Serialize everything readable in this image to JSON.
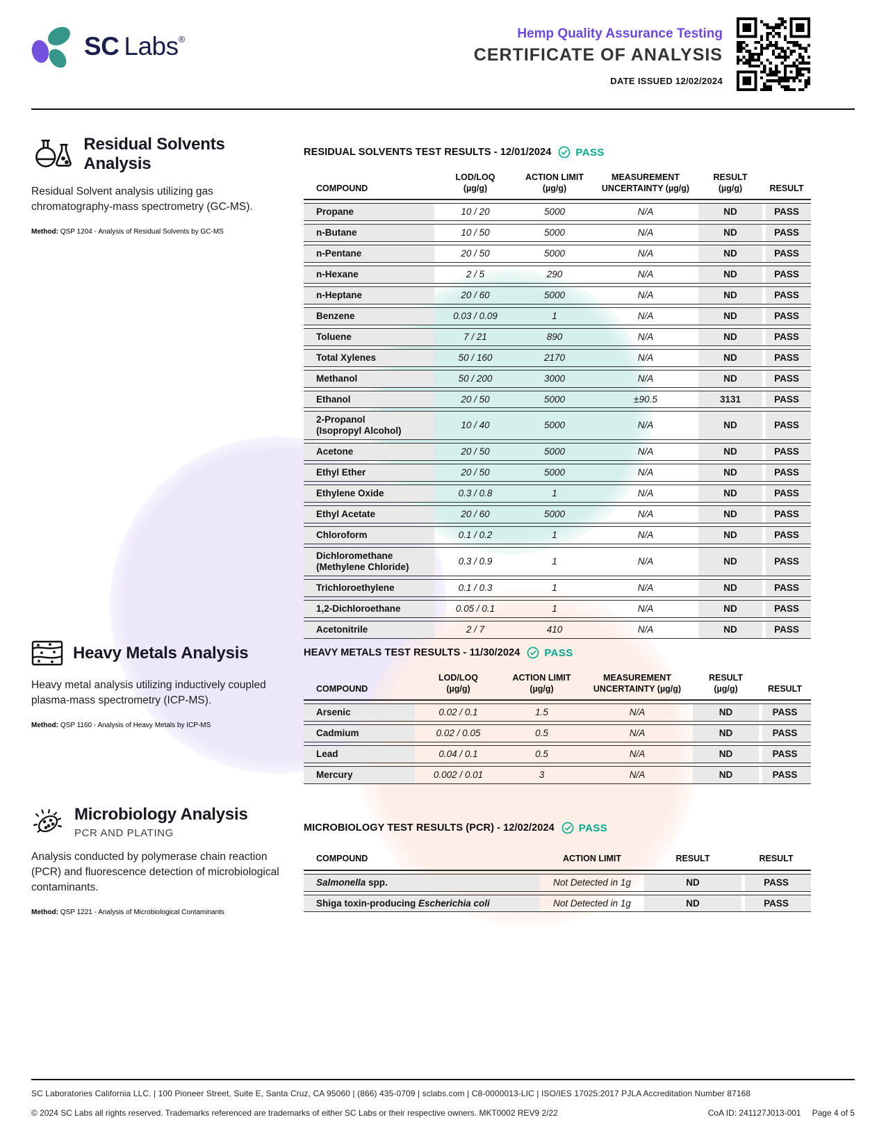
{
  "header": {
    "logo_sc": "SC",
    "logo_labs": "Labs",
    "logo_reg": "®",
    "program": "Hemp Quality Assurance Testing",
    "title": "CERTIFICATE OF ANALYSIS",
    "date_issued": "DATE ISSUED 12/02/2024"
  },
  "colors": {
    "accent_purple": "#6C47E0",
    "accent_teal": "#00A98C",
    "navy": "#1b1f4e"
  },
  "sections": {
    "solvents": {
      "heading": "Residual Solvents Analysis",
      "description": "Residual Solvent analysis utilizing gas chromatography-mass spectrometry (GC-MS).",
      "method_label": "Method:",
      "method": "QSP 1204 - Analysis of Residual Solvents by GC-MS",
      "results_title": "RESIDUAL SOLVENTS TEST RESULTS - 12/01/2024",
      "status": "PASS",
      "table": {
        "headers": [
          "COMPOUND",
          "LOD/LOQ\n(µg/g)",
          "ACTION LIMIT\n(µg/g)",
          "MEASUREMENT\nUNCERTAINTY (µg/g)",
          "RESULT\n(µg/g)",
          "RESULT"
        ],
        "rows": [
          {
            "compound": "Propane",
            "lod_loq": "10 / 20",
            "action_limit": "5000",
            "uncertainty": "N/A",
            "result": "ND",
            "status": "PASS"
          },
          {
            "compound": "n-Butane",
            "lod_loq": "10 / 50",
            "action_limit": "5000",
            "uncertainty": "N/A",
            "result": "ND",
            "status": "PASS"
          },
          {
            "compound": "n-Pentane",
            "lod_loq": "20 / 50",
            "action_limit": "5000",
            "uncertainty": "N/A",
            "result": "ND",
            "status": "PASS"
          },
          {
            "compound": "n-Hexane",
            "lod_loq": "2 / 5",
            "action_limit": "290",
            "uncertainty": "N/A",
            "result": "ND",
            "status": "PASS"
          },
          {
            "compound": "n-Heptane",
            "lod_loq": "20 / 60",
            "action_limit": "5000",
            "uncertainty": "N/A",
            "result": "ND",
            "status": "PASS"
          },
          {
            "compound": "Benzene",
            "lod_loq": "0.03 / 0.09",
            "action_limit": "1",
            "uncertainty": "N/A",
            "result": "ND",
            "status": "PASS"
          },
          {
            "compound": "Toluene",
            "lod_loq": "7 / 21",
            "action_limit": "890",
            "uncertainty": "N/A",
            "result": "ND",
            "status": "PASS"
          },
          {
            "compound": "Total Xylenes",
            "lod_loq": "50 / 160",
            "action_limit": "2170",
            "uncertainty": "N/A",
            "result": "ND",
            "status": "PASS"
          },
          {
            "compound": "Methanol",
            "lod_loq": "50 / 200",
            "action_limit": "3000",
            "uncertainty": "N/A",
            "result": "ND",
            "status": "PASS"
          },
          {
            "compound": "Ethanol",
            "lod_loq": "20 / 50",
            "action_limit": "5000",
            "uncertainty": "±90.5",
            "result": "3131",
            "status": "PASS"
          },
          {
            "compound": "2-Propanol\n(Isopropyl Alcohol)",
            "lod_loq": "10 / 40",
            "action_limit": "5000",
            "uncertainty": "N/A",
            "result": "ND",
            "status": "PASS"
          },
          {
            "compound": "Acetone",
            "lod_loq": "20 / 50",
            "action_limit": "5000",
            "uncertainty": "N/A",
            "result": "ND",
            "status": "PASS"
          },
          {
            "compound": "Ethyl Ether",
            "lod_loq": "20 / 50",
            "action_limit": "5000",
            "uncertainty": "N/A",
            "result": "ND",
            "status": "PASS"
          },
          {
            "compound": "Ethylene Oxide",
            "lod_loq": "0.3 / 0.8",
            "action_limit": "1",
            "uncertainty": "N/A",
            "result": "ND",
            "status": "PASS"
          },
          {
            "compound": "Ethyl Acetate",
            "lod_loq": "20 / 60",
            "action_limit": "5000",
            "uncertainty": "N/A",
            "result": "ND",
            "status": "PASS"
          },
          {
            "compound": "Chloroform",
            "lod_loq": "0.1 / 0.2",
            "action_limit": "1",
            "uncertainty": "N/A",
            "result": "ND",
            "status": "PASS"
          },
          {
            "compound": "Dichloromethane\n(Methylene Chloride)",
            "lod_loq": "0.3 / 0.9",
            "action_limit": "1",
            "uncertainty": "N/A",
            "result": "ND",
            "status": "PASS"
          },
          {
            "compound": "Trichloroethylene",
            "lod_loq": "0.1 / 0.3",
            "action_limit": "1",
            "uncertainty": "N/A",
            "result": "ND",
            "status": "PASS"
          },
          {
            "compound": "1,2-Dichloroethane",
            "lod_loq": "0.05 / 0.1",
            "action_limit": "1",
            "uncertainty": "N/A",
            "result": "ND",
            "status": "PASS"
          },
          {
            "compound": "Acetonitrile",
            "lod_loq": "2 / 7",
            "action_limit": "410",
            "uncertainty": "N/A",
            "result": "ND",
            "status": "PASS"
          }
        ]
      }
    },
    "metals": {
      "heading": "Heavy Metals Analysis",
      "description": "Heavy metal analysis utilizing inductively coupled plasma-mass spectrometry (ICP-MS).",
      "method_label": "Method:",
      "method": "QSP 1160 - Analysis of Heavy Metals by ICP-MS",
      "results_title": "HEAVY METALS TEST RESULTS - 11/30/2024",
      "status": "PASS",
      "table": {
        "headers": [
          "COMPOUND",
          "LOD/LOQ\n(µg/g)",
          "ACTION LIMIT\n(µg/g)",
          "MEASUREMENT\nUNCERTAINTY (µg/g)",
          "RESULT\n(µg/g)",
          "RESULT"
        ],
        "rows": [
          {
            "compound": "Arsenic",
            "lod_loq": "0.02 / 0.1",
            "action_limit": "1.5",
            "uncertainty": "N/A",
            "result": "ND",
            "status": "PASS"
          },
          {
            "compound": "Cadmium",
            "lod_loq": "0.02 / 0.05",
            "action_limit": "0.5",
            "uncertainty": "N/A",
            "result": "ND",
            "status": "PASS"
          },
          {
            "compound": "Lead",
            "lod_loq": "0.04 / 0.1",
            "action_limit": "0.5",
            "uncertainty": "N/A",
            "result": "ND",
            "status": "PASS"
          },
          {
            "compound": "Mercury",
            "lod_loq": "0.002 / 0.01",
            "action_limit": "3",
            "uncertainty": "N/A",
            "result": "ND",
            "status": "PASS"
          }
        ]
      }
    },
    "micro": {
      "heading": "Microbiology Analysis",
      "subheading": "PCR AND PLATING",
      "description": "Analysis conducted by polymerase chain reaction (PCR) and fluorescence detection of microbiological contaminants.",
      "method_label": "Method:",
      "method": "QSP 1221 - Analysis of Microbiological Contaminants",
      "results_title": "MICROBIOLOGY TEST RESULTS (PCR) - 12/02/2024",
      "status": "PASS",
      "table": {
        "headers": [
          "COMPOUND",
          "ACTION LIMIT",
          "RESULT",
          "RESULT"
        ],
        "rows": [
          {
            "compound_pre": "",
            "compound_italic": "Salmonella",
            "compound_post": " spp.",
            "action_limit": "Not Detected in 1g",
            "result": "ND",
            "status": "PASS"
          },
          {
            "compound_pre": "Shiga toxin-producing ",
            "compound_italic": "Escherichia coli",
            "compound_post": "",
            "action_limit": "Not Detected in 1g",
            "result": "ND",
            "status": "PASS"
          }
        ]
      }
    }
  },
  "footer": {
    "line1": "SC Laboratories California LLC. | 100 Pioneer Street, Suite E, Santa Cruz, CA 95060 | (866) 435-0709 | sclabs.com | C8-0000013-LIC | ISO/IES 17025:2017 PJLA Accreditation Number 87168",
    "line2": "© 2024 SC Labs all rights reserved. Trademarks referenced are trademarks of either SC Labs or their respective owners. MKT0002 REV9 2/22",
    "coa_id": "CoA ID: 241127J013-001",
    "page": "Page 4 of 5"
  }
}
